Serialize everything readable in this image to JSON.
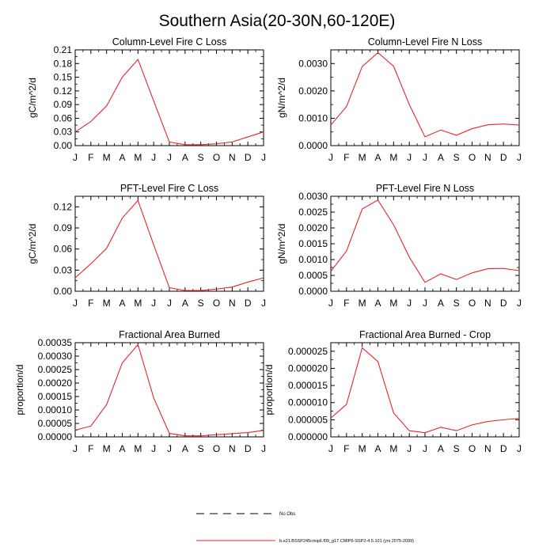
{
  "figure": {
    "title": "Southern Asia(20-30N,60-120E)",
    "colors": {
      "model": "#e8252a",
      "obs": "#000000",
      "axis": "#000000"
    },
    "legend": [
      {
        "label": "No Obs",
        "style": "dashed",
        "color": "#000000"
      },
      {
        "label": "b.e21.BSSP245cmip6.f09_g17.CMIP6-SSP2-4.5.101 (yrs 2075-2099)",
        "style": "solid",
        "color": "#e8252a"
      }
    ]
  },
  "chart_data": [
    {
      "type": "line",
      "title": "Column-Level Fire C Loss",
      "ylabel": "gC/m^2/d",
      "categories": [
        "J",
        "F",
        "M",
        "A",
        "M",
        "J",
        "J",
        "A",
        "S",
        "O",
        "N",
        "D",
        "J"
      ],
      "ylim": [
        0,
        0.21
      ],
      "yticks": [
        "0.00",
        "0.03",
        "0.06",
        "0.09",
        "0.12",
        "0.15",
        "0.18",
        "0.21"
      ],
      "series": [
        {
          "name": "model",
          "values": [
            0.03,
            0.053,
            0.087,
            0.15,
            0.189,
            0.098,
            0.008,
            0.002,
            0.002,
            0.004,
            0.008,
            0.019,
            0.03
          ]
        }
      ]
    },
    {
      "type": "line",
      "title": "Column-Level Fire N Loss",
      "ylabel": "gN/m^2/d",
      "categories": [
        "J",
        "F",
        "M",
        "A",
        "M",
        "J",
        "J",
        "A",
        "S",
        "O",
        "N",
        "D",
        "J"
      ],
      "ylim": [
        0,
        0.0035
      ],
      "yticks": [
        "0.0000",
        "0.0010",
        "0.0020",
        "0.0030"
      ],
      "series": [
        {
          "name": "model",
          "values": [
            0.00075,
            0.00143,
            0.00289,
            0.0034,
            0.0029,
            0.0015,
            0.00032,
            0.00057,
            0.00038,
            0.00062,
            0.00076,
            0.00079,
            0.00075
          ]
        }
      ]
    },
    {
      "type": "line",
      "title": "PFT-Level Fire C Loss",
      "ylabel": "gC/m^2/d",
      "categories": [
        "J",
        "F",
        "M",
        "A",
        "M",
        "J",
        "J",
        "A",
        "S",
        "O",
        "N",
        "D",
        "J"
      ],
      "ylim": [
        0,
        0.135
      ],
      "yticks": [
        "0.00",
        "0.03",
        "0.06",
        "0.09",
        "0.12"
      ],
      "series": [
        {
          "name": "model",
          "values": [
            0.019,
            0.039,
            0.061,
            0.104,
            0.129,
            0.066,
            0.005,
            0.001,
            0.001,
            0.003,
            0.006,
            0.013,
            0.019
          ]
        }
      ]
    },
    {
      "type": "line",
      "title": "PFT-Level Fire N Loss",
      "ylabel": "gN/m^2/d",
      "categories": [
        "J",
        "F",
        "M",
        "A",
        "M",
        "J",
        "J",
        "A",
        "S",
        "O",
        "N",
        "D",
        "J"
      ],
      "ylim": [
        0,
        0.003
      ],
      "yticks": [
        "0.0000",
        "0.0005",
        "0.0010",
        "0.0015",
        "0.0020",
        "0.0025",
        "0.0030"
      ],
      "series": [
        {
          "name": "model",
          "values": [
            0.00063,
            0.00127,
            0.0026,
            0.00288,
            0.0021,
            0.00108,
            0.00028,
            0.00055,
            0.00037,
            0.00058,
            0.00071,
            0.00072,
            0.00065
          ]
        }
      ]
    },
    {
      "type": "line",
      "title": "Fractional Area Burned",
      "ylabel": "proportion/d",
      "categories": [
        "J",
        "F",
        "M",
        "A",
        "M",
        "J",
        "J",
        "A",
        "S",
        "O",
        "N",
        "D",
        "J"
      ],
      "ylim": [
        0,
        0.00035
      ],
      "yticks": [
        "0.00000",
        "0.00005",
        "0.00010",
        "0.00015",
        "0.00020",
        "0.00025",
        "0.00030",
        "0.00035"
      ],
      "series": [
        {
          "name": "model",
          "values": [
            2.5e-05,
            4e-05,
            0.00012,
            0.000275,
            0.000343,
            0.000145,
            1.3e-05,
            4e-06,
            4e-06,
            8e-06,
            1.2e-05,
            1.6e-05,
            2.4e-05
          ]
        }
      ]
    },
    {
      "type": "line",
      "title": "Fractional Area Burned - Crop",
      "ylabel": "proportion/d",
      "categories": [
        "J",
        "F",
        "M",
        "A",
        "M",
        "J",
        "J",
        "A",
        "S",
        "O",
        "N",
        "D",
        "J"
      ],
      "ylim": [
        0,
        2.75e-05
      ],
      "yticks": [
        "0.000000",
        "0.000005",
        "0.000010",
        "0.000015",
        "0.000020",
        "0.000025"
      ],
      "series": [
        {
          "name": "model",
          "values": [
            5.5e-06,
            9.5e-06,
            2.6e-05,
            2.2e-05,
            7e-06,
            1.8e-06,
            1.2e-06,
            2.8e-06,
            1.8e-06,
            3.5e-06,
            4.5e-06,
            5e-06,
            5.4e-06
          ]
        }
      ]
    }
  ]
}
